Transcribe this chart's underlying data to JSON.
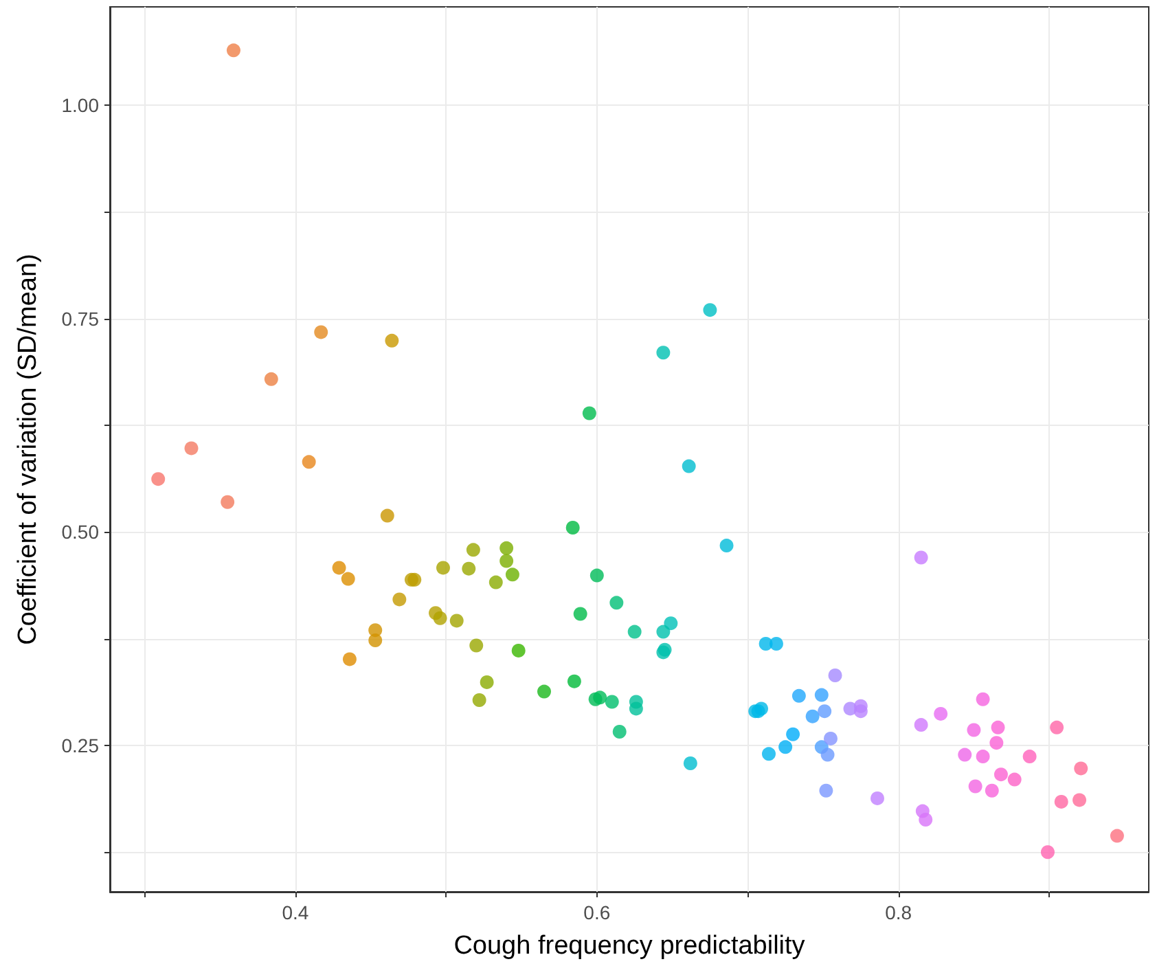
{
  "chart_data": {
    "type": "scatter",
    "xlabel": "Cough frequency predictability",
    "ylabel": "Coefficient of variation (SD/mean)",
    "x": [
      0.359,
      0.309,
      0.331,
      0.355,
      0.384,
      0.417,
      0.409,
      0.464,
      0.461,
      0.429,
      0.435,
      0.436,
      0.453,
      0.453,
      0.469,
      0.477,
      0.479,
      0.493,
      0.496,
      0.507,
      0.498,
      0.518,
      0.54,
      0.54,
      0.515,
      0.533,
      0.544,
      0.52,
      0.548,
      0.527,
      0.522,
      0.565,
      0.585,
      0.595,
      0.584,
      0.6,
      0.613,
      0.589,
      0.625,
      0.599,
      0.602,
      0.61,
      0.626,
      0.626,
      0.615,
      0.649,
      0.644,
      0.644,
      0.645,
      0.644,
      0.675,
      0.661,
      0.686,
      0.662,
      0.705,
      0.707,
      0.709,
      0.712,
      0.719,
      0.714,
      0.725,
      0.73,
      0.734,
      0.743,
      0.749,
      0.749,
      0.751,
      0.753,
      0.752,
      0.755,
      0.758,
      0.768,
      0.775,
      0.775,
      0.786,
      0.815,
      0.815,
      0.816,
      0.818,
      0.828,
      0.844,
      0.85,
      0.856,
      0.856,
      0.851,
      0.862,
      0.866,
      0.865,
      0.868,
      0.877,
      0.887,
      0.899,
      0.905,
      0.908,
      0.92,
      0.921,
      0.945
    ],
    "values": [
      1.064,
      0.562,
      0.598,
      0.535,
      0.679,
      0.734,
      0.582,
      0.724,
      0.519,
      0.458,
      0.445,
      0.351,
      0.385,
      0.373,
      0.421,
      0.444,
      0.444,
      0.405,
      0.399,
      0.396,
      0.458,
      0.479,
      0.481,
      0.466,
      0.457,
      0.441,
      0.45,
      0.367,
      0.361,
      0.324,
      0.303,
      0.313,
      0.325,
      0.639,
      0.505,
      0.449,
      0.417,
      0.404,
      0.383,
      0.304,
      0.306,
      0.301,
      0.301,
      0.293,
      0.266,
      0.393,
      0.383,
      0.359,
      0.362,
      0.71,
      0.76,
      0.577,
      0.484,
      0.229,
      0.29,
      0.29,
      0.293,
      0.369,
      0.369,
      0.24,
      0.248,
      0.263,
      0.308,
      0.284,
      0.309,
      0.248,
      0.29,
      0.239,
      0.197,
      0.258,
      0.332,
      0.293,
      0.296,
      0.29,
      0.188,
      0.47,
      0.274,
      0.173,
      0.163,
      0.287,
      0.239,
      0.268,
      0.304,
      0.237,
      0.202,
      0.197,
      0.271,
      0.253,
      0.216,
      0.21,
      0.237,
      0.125,
      0.271,
      0.184,
      0.186,
      0.223,
      0.144
    ],
    "colors": [
      "#ef7f47",
      "#f8766d",
      "#f47b63",
      "#f37b5c",
      "#ec8142",
      "#e38a1f",
      "#e7861b",
      "#c99800",
      "#cb9600",
      "#df8c00",
      "#dc8e00",
      "#de8c00",
      "#d29200",
      "#d29200",
      "#c49a00",
      "#bd9d00",
      "#bd9d00",
      "#b5a000",
      "#b0a200",
      "#a3a500",
      "#a8a400",
      "#9aa800",
      "#7cae00",
      "#7cae00",
      "#9aa800",
      "#8aab00",
      "#6bb100",
      "#9aa800",
      "#39b600",
      "#8aab00",
      "#93a900",
      "#1ab81c",
      "#00ba38",
      "#00bb4e",
      "#00ba42",
      "#00bc59",
      "#00bf75",
      "#00bb4a",
      "#00c08b",
      "#00bc56",
      "#00bc59",
      "#00be6c",
      "#00c19a",
      "#00c19a",
      "#00be70",
      "#00c0b8",
      "#00c1ad",
      "#00c1ad",
      "#00c1ad",
      "#00c1b2",
      "#00bfc4",
      "#00bdd0",
      "#00bbda",
      "#00bdd0",
      "#00b8e5",
      "#00b8e7",
      "#00b8e7",
      "#00b6eb",
      "#00b5ee",
      "#00b4ef",
      "#00aff5",
      "#00acfa",
      "#1fa7fc",
      "#35a2ff",
      "#35a2ff",
      "#4da0ff",
      "#619cff",
      "#6c9aff",
      "#7a97ff",
      "#8494ff",
      "#a58aff",
      "#ae87ff",
      "#b983ff",
      "#b983ff",
      "#c07fff",
      "#c77cff",
      "#d078fc",
      "#d575fa",
      "#d874f9",
      "#e76bf3",
      "#ee67e9",
      "#f265e4",
      "#f564e0",
      "#f564e0",
      "#f365e2",
      "#f863db",
      "#fa62d6",
      "#fa62d6",
      "#fb62d2",
      "#fd62c7",
      "#ff62bc",
      "#ff63b0",
      "#ff65a8",
      "#ff66a2",
      "#ff6a98",
      "#ff6a95",
      "#fc717f"
    ],
    "xlim": [
      0.277,
      0.966
    ],
    "ylim": [
      0.0785,
      1.115
    ],
    "xticks": [
      {
        "value": 0.3,
        "label": null
      },
      0.4,
      {
        "value": 0.5,
        "label": null
      },
      0.6,
      {
        "value": 0.7,
        "label": null
      },
      0.8,
      {
        "value": 0.9,
        "label": null
      }
    ],
    "yticks": [
      {
        "value": 0.125,
        "label": null
      },
      {
        "value": 0.25,
        "label": "0.25"
      },
      {
        "value": 0.375,
        "label": null
      },
      {
        "value": 0.5,
        "label": "0.50"
      },
      {
        "value": 0.625,
        "label": null
      },
      {
        "value": 0.75,
        "label": "0.75"
      },
      {
        "value": 0.875,
        "label": null
      },
      {
        "value": 1.0,
        "label": "1.00"
      }
    ],
    "grid": true,
    "marker": "circle"
  }
}
